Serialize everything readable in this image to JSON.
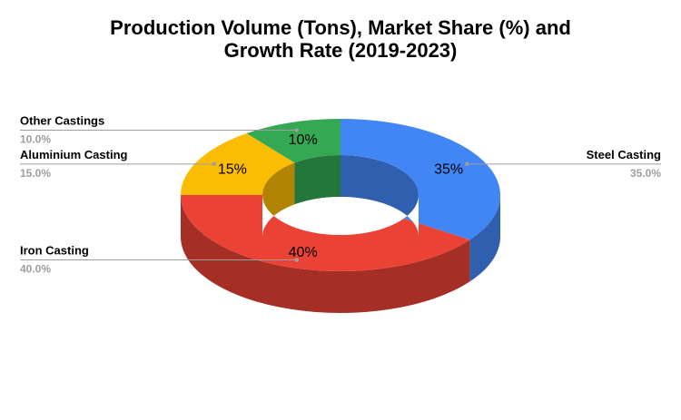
{
  "chart_data": {
    "type": "pie",
    "variant": "donut-3d",
    "title_lines": [
      "Production Volume (Tons), Market Share (%) and",
      "Growth Rate (2019-2023)"
    ],
    "slices": [
      {
        "label": "Steel Casting",
        "value": 35,
        "display": "35%",
        "legend_value": "35.0%",
        "color": "#4285f4",
        "side_color": "#2f5fae"
      },
      {
        "label": "Iron Casting",
        "value": 40,
        "display": "40%",
        "legend_value": "40.0%",
        "color": "#ea4335",
        "side_color": "#a52f25"
      },
      {
        "label": "Aluminium Casting",
        "value": 15,
        "display": "15%",
        "legend_value": "15.0%",
        "color": "#fbbc04",
        "side_color": "#b18503"
      },
      {
        "label": "Other Castings",
        "value": 10,
        "display": "10%",
        "legend_value": "10.0%",
        "color": "#34a853",
        "side_color": "#24763a"
      }
    ],
    "start_angle_deg": 0,
    "direction": "clockwise",
    "label_sides": {
      "Steel Casting": "right",
      "Iron Casting": "left",
      "Aluminium Casting": "left",
      "Other Castings": "left"
    }
  }
}
